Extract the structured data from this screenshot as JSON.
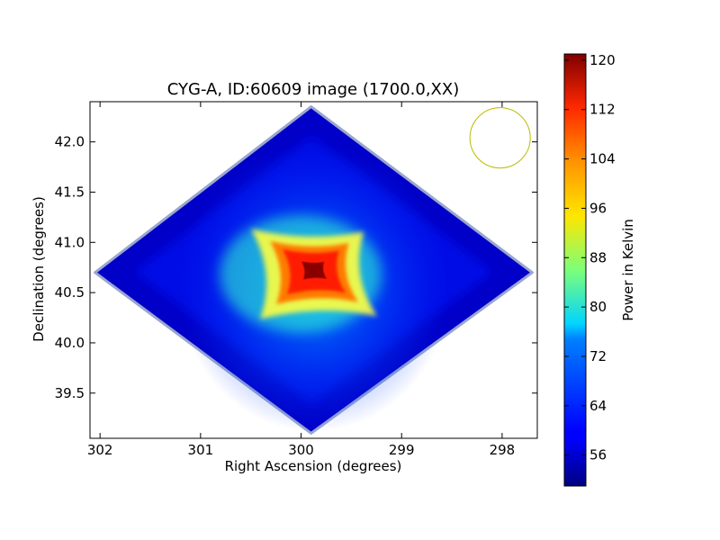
{
  "chart_data": {
    "type": "heatmap",
    "title": "CYG-A, ID:60609 image (1700.0,XX)",
    "xlabel": "Right Ascension (degrees)",
    "ylabel": "Declination (degrees)",
    "xlim": [
      302.1,
      297.65
    ],
    "ylim": [
      39.05,
      42.4
    ],
    "x_inverted": true,
    "xticks": [
      {
        "value": 302,
        "label": "302"
      },
      {
        "value": 301,
        "label": "301"
      },
      {
        "value": 300,
        "label": "300"
      },
      {
        "value": 299,
        "label": "299"
      },
      {
        "value": 298,
        "label": "298"
      }
    ],
    "yticks": [
      {
        "value": 39.5,
        "label": "39.5"
      },
      {
        "value": 40.0,
        "label": "40.0"
      },
      {
        "value": 40.5,
        "label": "40.5"
      },
      {
        "value": 41.0,
        "label": "41.0"
      },
      {
        "value": 41.5,
        "label": "41.5"
      },
      {
        "value": 42.0,
        "label": "42.0"
      }
    ],
    "map_footprint": {
      "shape": "diamond",
      "vertices": [
        {
          "ra": 299.9,
          "dec": 42.35
        },
        {
          "ra": 297.7,
          "dec": 40.7
        },
        {
          "ra": 299.9,
          "dec": 39.1
        },
        {
          "ra": 302.05,
          "dec": 40.7
        }
      ]
    },
    "source_peak": {
      "ra": 299.87,
      "dec": 40.73,
      "value": 121
    },
    "background_value": 54,
    "beam_circle": {
      "ra": 298.02,
      "dec": 42.04,
      "radius_deg": 0.3,
      "color": "#bcbc00"
    },
    "colorbar": {
      "label": "Power in Kelvin",
      "range": [
        51,
        121
      ],
      "colormap": "jet",
      "ticks": [
        {
          "value": 56,
          "label": "56"
        },
        {
          "value": 64,
          "label": "64"
        },
        {
          "value": 72,
          "label": "72"
        },
        {
          "value": 80,
          "label": "80"
        },
        {
          "value": 88,
          "label": "88"
        },
        {
          "value": 96,
          "label": "96"
        },
        {
          "value": 104,
          "label": "104"
        },
        {
          "value": 112,
          "label": "112"
        },
        {
          "value": 120,
          "label": "120"
        }
      ]
    }
  }
}
